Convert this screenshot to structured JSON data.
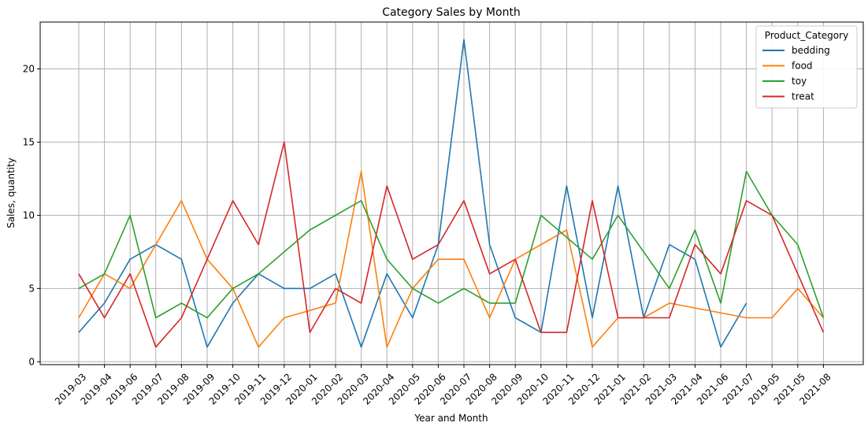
{
  "chart_data": {
    "type": "line",
    "title": "Category Sales by Month",
    "xlabel": "Year and Month",
    "ylabel": "Sales, quantity",
    "categories": [
      "2019-03",
      "2019-04",
      "2019-06",
      "2019-07",
      "2019-08",
      "2019-09",
      "2019-10",
      "2019-11",
      "2019-12",
      "2020-01",
      "2020-02",
      "2020-03",
      "2020-04",
      "2020-05",
      "2020-06",
      "2020-07",
      "2020-08",
      "2020-09",
      "2020-10",
      "2020-11",
      "2020-12",
      "2021-01",
      "2021-02",
      "2021-03",
      "2021-04",
      "2021-06",
      "2021-07",
      "2019-05",
      "2021-05",
      "2021-08"
    ],
    "ylim": [
      0,
      23
    ],
    "yticks": [
      0,
      5,
      10,
      15,
      20
    ],
    "grid": true,
    "legend": {
      "title": "Product_Category",
      "placement": "top-right"
    },
    "series": [
      {
        "name": "bedding",
        "color": "#1f77b4",
        "values": [
          2,
          4,
          7,
          8,
          7,
          1,
          4,
          6,
          5,
          5,
          6,
          1,
          6,
          3,
          8,
          22,
          8,
          3,
          2,
          12,
          3,
          12,
          3,
          8,
          7,
          1,
          4,
          null,
          null,
          null
        ]
      },
      {
        "name": "food",
        "color": "#ff7f0e",
        "values": [
          3,
          6,
          5,
          8,
          11,
          7,
          5,
          1,
          3,
          null,
          4,
          13,
          1,
          5,
          7,
          7,
          3,
          7,
          null,
          9,
          1,
          3,
          3,
          4,
          null,
          null,
          3,
          3,
          5,
          3
        ]
      },
      {
        "name": "toy",
        "color": "#2ca02c",
        "values": [
          5,
          6,
          10,
          3,
          4,
          3,
          5,
          6,
          null,
          9,
          null,
          11,
          7,
          5,
          4,
          5,
          4,
          4,
          10,
          null,
          7,
          10,
          null,
          5,
          9,
          4,
          13,
          10,
          8,
          3
        ]
      },
      {
        "name": "treat",
        "color": "#d62728",
        "values": [
          6,
          3,
          6,
          1,
          3,
          7,
          11,
          8,
          15,
          2,
          5,
          4,
          12,
          7,
          8,
          11,
          6,
          7,
          2,
          2,
          11,
          3,
          3,
          3,
          8,
          6,
          11,
          10,
          6,
          2
        ]
      }
    ]
  }
}
